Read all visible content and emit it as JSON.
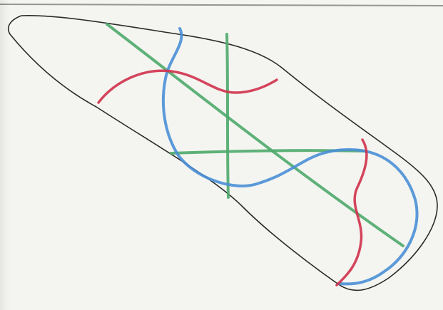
{
  "colors": {
    "paper": "#f4f5f1",
    "outline": "#2b2b2b",
    "red": "#d0344e",
    "blue": "#4a8fd6",
    "green": "#4eaa6a"
  },
  "strokes": [
    {
      "name": "outline-shape",
      "color": "outline"
    },
    {
      "name": "green-diagonal-line",
      "color": "green"
    },
    {
      "name": "green-vertical-line",
      "color": "green"
    },
    {
      "name": "green-horizontal-line",
      "color": "green"
    },
    {
      "name": "red-upper-curve",
      "color": "red"
    },
    {
      "name": "red-lower-curve",
      "color": "red"
    },
    {
      "name": "blue-s-curve",
      "color": "blue"
    }
  ]
}
